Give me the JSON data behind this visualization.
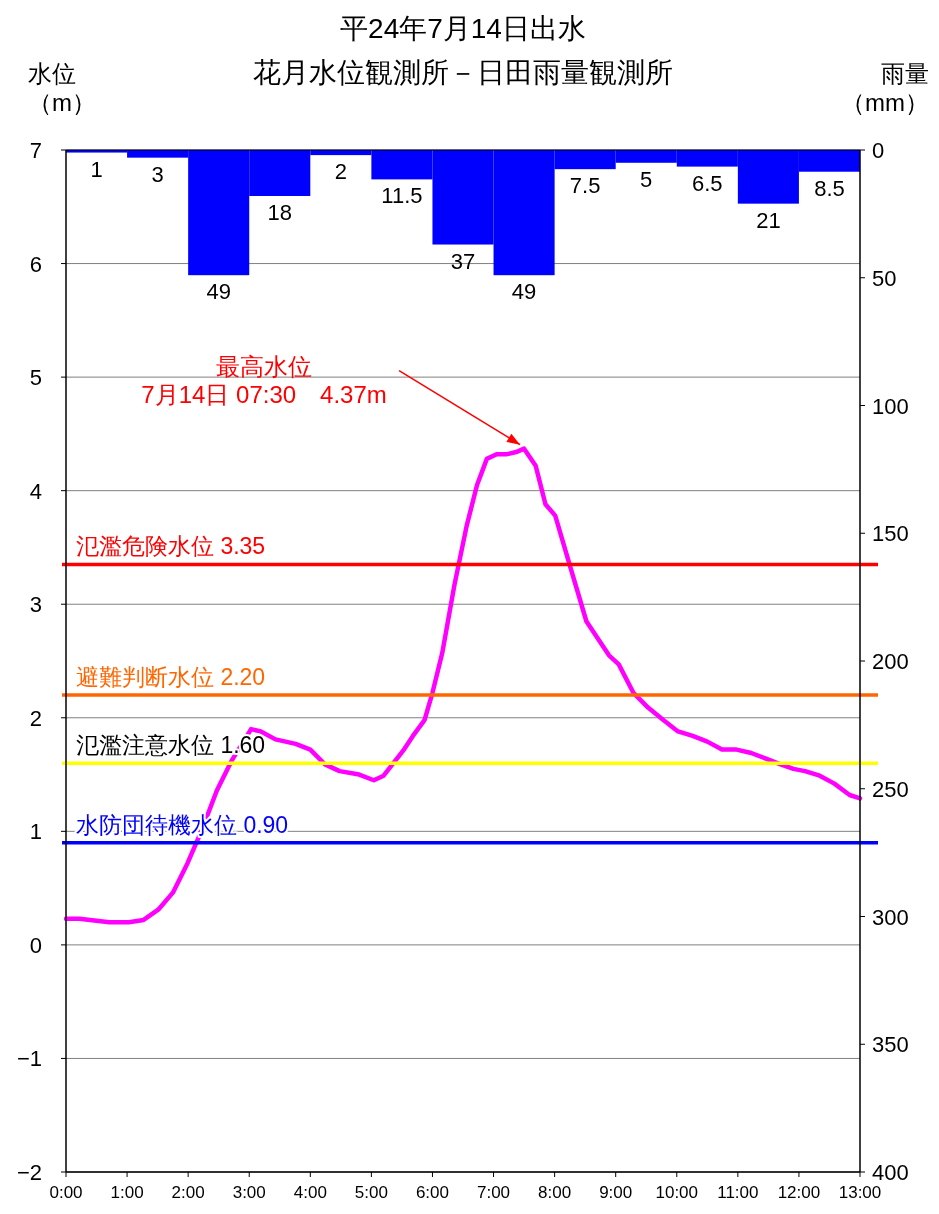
{
  "chart_data": {
    "type": "line",
    "title": "平24年7月14日出水",
    "subtitle": "花月水位観測所－日田雨量観測所",
    "ylabel": "水位（m）",
    "y2label": "雨量（mm）",
    "xlim": [
      0,
      13
    ],
    "xticks": [
      {
        "value": 0,
        "label": "0:00"
      },
      {
        "value": 1,
        "label": "1:00"
      },
      {
        "value": 2,
        "label": "2:00"
      },
      {
        "value": 3,
        "label": "3:00"
      },
      {
        "value": 4,
        "label": "4:00"
      },
      {
        "value": 5,
        "label": "5:00"
      },
      {
        "value": 6,
        "label": "6:00"
      },
      {
        "value": 7,
        "label": "7:00"
      },
      {
        "value": 8,
        "label": "8:00"
      },
      {
        "value": 9,
        "label": "9:00"
      },
      {
        "value": 10,
        "label": "10:00"
      },
      {
        "value": 11,
        "label": "11:00"
      },
      {
        "value": 12,
        "label": "12:00"
      },
      {
        "value": 13,
        "label": "13:00"
      }
    ],
    "ylim": [
      -2,
      7
    ],
    "yticks": [
      {
        "value": -2,
        "label": "−2"
      },
      {
        "value": -1,
        "label": "−1"
      },
      0,
      1,
      2,
      3,
      4,
      5,
      6,
      7
    ],
    "y2lim": [
      400,
      0
    ],
    "y2ticks": [
      0,
      50,
      100,
      150,
      200,
      250,
      300,
      350,
      400
    ],
    "grid": "y",
    "line_style": "solid",
    "series": [
      {
        "type": "bar",
        "axis": "y2",
        "color": "#0000ff",
        "x": [
          0.5,
          1.5,
          2.5,
          3.5,
          4.5,
          5.5,
          6.5,
          7.5,
          8.5,
          9.5,
          10.5,
          11.5,
          12.5
        ],
        "values": [
          1,
          3,
          49,
          18,
          2,
          11.5,
          37,
          49,
          7.5,
          5,
          6.5,
          21,
          8.5
        ],
        "value_labels": [
          "1",
          "3",
          "49",
          "18",
          "2",
          "11.5",
          "37",
          "49",
          "7.5",
          "5",
          "6.5",
          "21",
          "8.5"
        ]
      },
      {
        "color": "#ff00ff",
        "x": [
          0,
          0.22,
          0.71,
          1.03,
          1.27,
          1.51,
          1.75,
          1.99,
          2.23,
          2.47,
          2.71,
          3.03,
          3.19,
          3.43,
          3.76,
          4.0,
          4.24,
          4.48,
          4.8,
          5.04,
          5.2,
          5.36,
          5.52,
          5.68,
          5.87,
          6.0,
          6.16,
          6.36,
          6.56,
          6.73,
          6.89,
          7.05,
          7.21,
          7.37,
          7.5,
          7.69,
          7.85,
          8.01,
          8.25,
          8.52,
          8.68,
          8.89,
          9.05,
          9.29,
          9.53,
          9.78,
          10.02,
          10.26,
          10.5,
          10.74,
          10.98,
          11.22,
          11.46,
          11.7,
          11.91,
          12.1,
          12.34,
          12.58,
          12.83,
          13.0
        ],
        "values": [
          0.23,
          0.23,
          0.2,
          0.2,
          0.22,
          0.31,
          0.46,
          0.72,
          1.02,
          1.36,
          1.62,
          1.9,
          1.88,
          1.81,
          1.77,
          1.72,
          1.59,
          1.53,
          1.5,
          1.45,
          1.49,
          1.6,
          1.71,
          1.84,
          1.98,
          2.22,
          2.57,
          3.17,
          3.69,
          4.05,
          4.28,
          4.32,
          4.32,
          4.34,
          4.37,
          4.22,
          3.88,
          3.78,
          3.34,
          2.85,
          2.72,
          2.55,
          2.47,
          2.22,
          2.09,
          1.98,
          1.88,
          1.84,
          1.79,
          1.72,
          1.72,
          1.69,
          1.64,
          1.59,
          1.55,
          1.53,
          1.49,
          1.42,
          1.32,
          1.29
        ]
      }
    ],
    "ref_lines": [
      {
        "axis": "y",
        "value": 3.35,
        "label": "氾濫危険水位  3.35",
        "color": "#ff0000"
      },
      {
        "axis": "y",
        "value": 2.2,
        "label": "避難判断水位  2.20",
        "color": "#ff6600"
      },
      {
        "axis": "y",
        "value": 1.6,
        "label": "氾濫注意水位  1.60",
        "color": "#ffff00"
      },
      {
        "axis": "y",
        "value": 0.9,
        "label": "水防団待機水位  0.90",
        "color": "#0000ff"
      }
    ],
    "annotations": [
      {
        "text": "最高水位\n7月14日 07:30　4.37m",
        "x": 7.5,
        "y": 4.37
      }
    ]
  }
}
